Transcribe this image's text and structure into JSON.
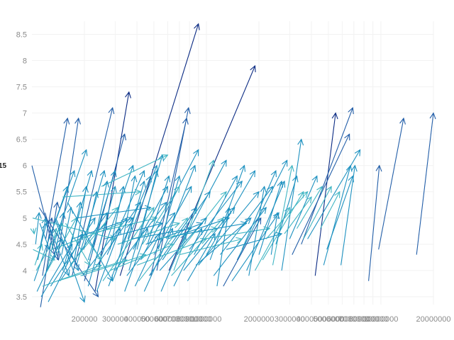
{
  "chart_data": {
    "type": "line",
    "subtype": "arrow-segments",
    "x_scale": "log",
    "x_tick_labels": [
      "200000",
      "300000",
      "400000",
      "500000",
      "600000",
      "700000",
      "800000",
      "900000",
      "1000000",
      "2000000",
      "3000000",
      "4000000",
      "5000000",
      "6000000",
      "7000000",
      "8000000",
      "9000000",
      "10000000",
      "20000000"
    ],
    "x_ticks": [
      200000,
      300000,
      400000,
      500000,
      600000,
      700000,
      800000,
      900000,
      1000000,
      2000000,
      3000000,
      4000000,
      5000000,
      6000000,
      7000000,
      8000000,
      9000000,
      10000000,
      20000000
    ],
    "y_tick_labels": [
      "3.5",
      "4",
      "4.5",
      "5",
      "5.5",
      "6",
      "6.5",
      "7",
      "7.5",
      "8",
      "8.5"
    ],
    "y_ticks": [
      3.5,
      4,
      4.5,
      5,
      5.5,
      6,
      6.5,
      7,
      7.5,
      8,
      8.5
    ],
    "xlim": [
      100000,
      20000000
    ],
    "ylim": [
      3.35,
      8.75
    ],
    "left_edge_label": "15",
    "grid": true,
    "legend": "none",
    "colors": {
      "light": "#41b6c4",
      "mid": "#1d91c0",
      "dark": "#225ea8",
      "darkest": "#0c2c84",
      "grid": "#f2f2f2",
      "tick": "#8a8a8a"
    },
    "segments": [
      {
        "x0": 120000,
        "y0": 4.6,
        "x1": 160000,
        "y1": 6.9,
        "shade": "dark"
      },
      {
        "x0": 140000,
        "y0": 4.2,
        "x1": 185000,
        "y1": 6.9,
        "shade": "dark"
      },
      {
        "x0": 170000,
        "y0": 3.9,
        "x1": 290000,
        "y1": 7.1,
        "shade": "dark"
      },
      {
        "x0": 230000,
        "y0": 3.6,
        "x1": 360000,
        "y1": 7.4,
        "shade": "darkest"
      },
      {
        "x0": 320000,
        "y0": 3.9,
        "x1": 900000,
        "y1": 8.7,
        "shade": "darkest"
      },
      {
        "x0": 610000,
        "y0": 4.0,
        "x1": 1900000,
        "y1": 7.9,
        "shade": "darkest"
      },
      {
        "x0": 200000,
        "y0": 3.8,
        "x1": 340000,
        "y1": 6.6,
        "shade": "dark"
      },
      {
        "x0": 520000,
        "y0": 4.0,
        "x1": 790000,
        "y1": 7.1,
        "shade": "dark"
      },
      {
        "x0": 480000,
        "y0": 3.9,
        "x1": 770000,
        "y1": 6.9,
        "shade": "dark"
      },
      {
        "x0": 130000,
        "y0": 4.4,
        "x1": 205000,
        "y1": 6.3,
        "shade": "mid"
      },
      {
        "x0": 100000,
        "y0": 6.0,
        "x1": 135000,
        "y1": 4.3,
        "shade": "dark"
      },
      {
        "x0": 290000,
        "y0": 3.8,
        "x1": 520000,
        "y1": 6.0,
        "shade": "mid"
      },
      {
        "x0": 360000,
        "y0": 4.0,
        "x1": 560000,
        "y1": 6.2,
        "shade": "mid"
      },
      {
        "x0": 420000,
        "y0": 4.2,
        "x1": 900000,
        "y1": 6.3,
        "shade": "mid"
      },
      {
        "x0": 4200000,
        "y0": 3.9,
        "x1": 5500000,
        "y1": 7.0,
        "shade": "darkest"
      },
      {
        "x0": 3500000,
        "y0": 4.5,
        "x1": 6900000,
        "y1": 7.1,
        "shade": "dark"
      },
      {
        "x0": 3100000,
        "y0": 4.3,
        "x1": 6600000,
        "y1": 6.6,
        "shade": "dark"
      },
      {
        "x0": 3800000,
        "y0": 4.6,
        "x1": 7600000,
        "y1": 6.3,
        "shade": "mid"
      },
      {
        "x0": 4700000,
        "y0": 4.1,
        "x1": 6700000,
        "y1": 6.0,
        "shade": "mid"
      },
      {
        "x0": 5900000,
        "y0": 4.1,
        "x1": 7100000,
        "y1": 6.0,
        "shade": "mid"
      },
      {
        "x0": 8500000,
        "y0": 3.8,
        "x1": 9800000,
        "y1": 6.0,
        "shade": "dark"
      },
      {
        "x0": 9700000,
        "y0": 4.4,
        "x1": 13500000,
        "y1": 6.9,
        "shade": "dark"
      },
      {
        "x0": 16000000,
        "y0": 4.3,
        "x1": 20000000,
        "y1": 7.0,
        "shade": "dark"
      },
      {
        "x0": 2700000,
        "y0": 4.0,
        "x1": 3500000,
        "y1": 6.5,
        "shade": "mid"
      },
      {
        "x0": 1500000,
        "y0": 4.2,
        "x1": 2900000,
        "y1": 6.1,
        "shade": "mid"
      },
      {
        "x0": 1000000,
        "y0": 4.3,
        "x1": 1900000,
        "y1": 5.9,
        "shade": "mid"
      },
      {
        "x0": 650000,
        "y0": 4.0,
        "x1": 1100000,
        "y1": 6.1,
        "shade": "light"
      },
      {
        "x0": 2400000,
        "y0": 4.1,
        "x1": 3100000,
        "y1": 6.0,
        "shade": "light"
      },
      {
        "x0": 4900000,
        "y0": 4.4,
        "x1": 6900000,
        "y1": 5.8,
        "shade": "mid"
      },
      {
        "x0": 102000,
        "y0": 4.8,
        "x1": 103000,
        "y1": 4.7,
        "shade": "light"
      },
      {
        "x0": 105000,
        "y0": 4.5,
        "x1": 110000,
        "y1": 5.1,
        "shade": "mid"
      },
      {
        "x0": 108000,
        "y0": 4.2,
        "x1": 120000,
        "y1": 5.0,
        "shade": "mid"
      },
      {
        "x0": 115000,
        "y0": 3.9,
        "x1": 130000,
        "y1": 5.0,
        "shade": "dark"
      },
      {
        "x0": 112000,
        "y0": 3.3,
        "x1": 140000,
        "y1": 5.3,
        "shade": "dark"
      },
      {
        "x0": 103000,
        "y0": 3.8,
        "x1": 160000,
        "y1": 5.6,
        "shade": "mid"
      },
      {
        "x0": 125000,
        "y0": 4.6,
        "x1": 175000,
        "y1": 5.9,
        "shade": "mid"
      },
      {
        "x0": 150000,
        "y0": 4.0,
        "x1": 220000,
        "y1": 5.9,
        "shade": "mid"
      },
      {
        "x0": 180000,
        "y0": 4.1,
        "x1": 260000,
        "y1": 5.9,
        "shade": "mid"
      },
      {
        "x0": 210000,
        "y0": 4.2,
        "x1": 300000,
        "y1": 5.9,
        "shade": "mid"
      },
      {
        "x0": 240000,
        "y0": 4.1,
        "x1": 380000,
        "y1": 6.0,
        "shade": "mid"
      },
      {
        "x0": 270000,
        "y0": 4.3,
        "x1": 440000,
        "y1": 5.9,
        "shade": "mid"
      },
      {
        "x0": 330000,
        "y0": 4.5,
        "x1": 480000,
        "y1": 5.8,
        "shade": "mid"
      },
      {
        "x0": 380000,
        "y0": 4.4,
        "x1": 600000,
        "y1": 5.6,
        "shade": "mid"
      },
      {
        "x0": 430000,
        "y0": 4.5,
        "x1": 700000,
        "y1": 5.6,
        "shade": "light"
      },
      {
        "x0": 500000,
        "y0": 4.3,
        "x1": 820000,
        "y1": 5.6,
        "shade": "mid"
      },
      {
        "x0": 560000,
        "y0": 4.2,
        "x1": 1050000,
        "y1": 5.5,
        "shade": "mid"
      },
      {
        "x0": 680000,
        "y0": 4.3,
        "x1": 1300000,
        "y1": 5.5,
        "shade": "light"
      },
      {
        "x0": 800000,
        "y0": 4.4,
        "x1": 1600000,
        "y1": 5.7,
        "shade": "mid"
      },
      {
        "x0": 900000,
        "y0": 4.1,
        "x1": 2000000,
        "y1": 5.5,
        "shade": "mid"
      },
      {
        "x0": 1200000,
        "y0": 4.3,
        "x1": 2400000,
        "y1": 5.6,
        "shade": "mid"
      },
      {
        "x0": 1700000,
        "y0": 4.0,
        "x1": 2800000,
        "y1": 5.7,
        "shade": "mid"
      },
      {
        "x0": 2100000,
        "y0": 4.2,
        "x1": 3600000,
        "y1": 5.5,
        "shade": "light"
      },
      {
        "x0": 3000000,
        "y0": 4.6,
        "x1": 4300000,
        "y1": 5.8,
        "shade": "mid"
      },
      {
        "x0": 3600000,
        "y0": 4.6,
        "x1": 5200000,
        "y1": 5.6,
        "shade": "light"
      },
      {
        "x0": 4500000,
        "y0": 4.8,
        "x1": 5800000,
        "y1": 5.5,
        "shade": "light"
      },
      {
        "x0": 106000,
        "y0": 4.0,
        "x1": 150000,
        "y1": 4.9,
        "shade": "light"
      },
      {
        "x0": 118000,
        "y0": 3.9,
        "x1": 180000,
        "y1": 5.0,
        "shade": "light"
      },
      {
        "x0": 128000,
        "y0": 3.7,
        "x1": 230000,
        "y1": 5.0,
        "shade": "mid"
      },
      {
        "x0": 145000,
        "y0": 3.8,
        "x1": 270000,
        "y1": 5.1,
        "shade": "mid"
      },
      {
        "x0": 165000,
        "y0": 4.1,
        "x1": 310000,
        "y1": 5.2,
        "shade": "light"
      },
      {
        "x0": 195000,
        "y0": 3.9,
        "x1": 350000,
        "y1": 5.0,
        "shade": "mid"
      },
      {
        "x0": 225000,
        "y0": 4.0,
        "x1": 420000,
        "y1": 5.3,
        "shade": "mid"
      },
      {
        "x0": 255000,
        "y0": 3.8,
        "x1": 500000,
        "y1": 5.2,
        "shade": "light"
      },
      {
        "x0": 300000,
        "y0": 4.0,
        "x1": 590000,
        "y1": 5.3,
        "shade": "mid"
      },
      {
        "x0": 350000,
        "y0": 3.9,
        "x1": 660000,
        "y1": 5.1,
        "shade": "mid"
      },
      {
        "x0": 410000,
        "y0": 3.8,
        "x1": 780000,
        "y1": 5.0,
        "shade": "light"
      },
      {
        "x0": 470000,
        "y0": 3.9,
        "x1": 880000,
        "y1": 5.2,
        "shade": "mid"
      },
      {
        "x0": 540000,
        "y0": 4.0,
        "x1": 1000000,
        "y1": 5.0,
        "shade": "mid"
      },
      {
        "x0": 630000,
        "y0": 3.9,
        "x1": 1250000,
        "y1": 5.0,
        "shade": "light"
      },
      {
        "x0": 740000,
        "y0": 4.0,
        "x1": 1450000,
        "y1": 5.2,
        "shade": "mid"
      },
      {
        "x0": 870000,
        "y0": 4.1,
        "x1": 1800000,
        "y1": 5.0,
        "shade": "mid"
      },
      {
        "x0": 1100000,
        "y0": 3.9,
        "x1": 2200000,
        "y1": 5.2,
        "shade": "mid"
      },
      {
        "x0": 1400000,
        "y0": 3.8,
        "x1": 2600000,
        "y1": 5.1,
        "shade": "mid"
      },
      {
        "x0": 1900000,
        "y0": 4.0,
        "x1": 3000000,
        "y1": 5.2,
        "shade": "light"
      },
      {
        "x0": 101000,
        "y0": 5.0,
        "x1": 300000,
        "y1": 4.6,
        "shade": "light"
      },
      {
        "x0": 110000,
        "y0": 5.2,
        "x1": 240000,
        "y1": 3.5,
        "shade": "dark"
      },
      {
        "x0": 135000,
        "y0": 5.0,
        "x1": 200000,
        "y1": 3.4,
        "shade": "mid"
      },
      {
        "x0": 160000,
        "y0": 5.3,
        "x1": 290000,
        "y1": 3.8,
        "shade": "mid"
      },
      {
        "x0": 115000,
        "y0": 3.7,
        "x1": 250000,
        "y1": 4.1,
        "shade": "light"
      },
      {
        "x0": 140000,
        "y0": 3.8,
        "x1": 350000,
        "y1": 4.2,
        "shade": "light"
      },
      {
        "x0": 190000,
        "y0": 3.9,
        "x1": 450000,
        "y1": 4.3,
        "shade": "light"
      },
      {
        "x0": 280000,
        "y0": 4.0,
        "x1": 650000,
        "y1": 4.5,
        "shade": "light"
      },
      {
        "x0": 400000,
        "y0": 4.1,
        "x1": 1000000,
        "y1": 4.6,
        "shade": "light"
      },
      {
        "x0": 700000,
        "y0": 4.3,
        "x1": 1600000,
        "y1": 4.6,
        "shade": "light"
      },
      {
        "x0": 150000,
        "y0": 5.4,
        "x1": 420000,
        "y1": 5.5,
        "shade": "light"
      },
      {
        "x0": 250000,
        "y0": 5.6,
        "x1": 600000,
        "y1": 6.2,
        "shade": "light"
      },
      {
        "x0": 180000,
        "y0": 5.0,
        "x1": 480000,
        "y1": 5.2,
        "shade": "mid"
      },
      {
        "x0": 130000,
        "y0": 4.4,
        "x1": 330000,
        "y1": 4.9,
        "shade": "light"
      },
      {
        "x0": 170000,
        "y0": 4.6,
        "x1": 380000,
        "y1": 5.0,
        "shade": "mid"
      },
      {
        "x0": 215000,
        "y0": 4.7,
        "x1": 520000,
        "y1": 5.0,
        "shade": "light"
      },
      {
        "x0": 260000,
        "y0": 4.6,
        "x1": 560000,
        "y1": 4.9,
        "shade": "mid"
      },
      {
        "x0": 310000,
        "y0": 4.5,
        "x1": 700000,
        "y1": 4.9,
        "shade": "light"
      },
      {
        "x0": 370000,
        "y0": 4.6,
        "x1": 820000,
        "y1": 4.8,
        "shade": "mid"
      },
      {
        "x0": 450000,
        "y0": 4.5,
        "x1": 950000,
        "y1": 4.9,
        "shade": "mid"
      },
      {
        "x0": 520000,
        "y0": 4.6,
        "x1": 1150000,
        "y1": 4.8,
        "shade": "light"
      },
      {
        "x0": 600000,
        "y0": 4.6,
        "x1": 1350000,
        "y1": 5.0,
        "shade": "mid"
      },
      {
        "x0": 760000,
        "y0": 4.7,
        "x1": 1700000,
        "y1": 4.9,
        "shade": "mid"
      },
      {
        "x0": 960000,
        "y0": 4.6,
        "x1": 2300000,
        "y1": 4.8,
        "shade": "light"
      },
      {
        "x0": 1300000,
        "y0": 4.4,
        "x1": 2700000,
        "y1": 4.7,
        "shade": "mid"
      },
      {
        "x0": 104000,
        "y0": 4.1,
        "x1": 114000,
        "y1": 4.5,
        "shade": "light"
      },
      {
        "x0": 109000,
        "y0": 4.3,
        "x1": 121000,
        "y1": 4.9,
        "shade": "mid"
      },
      {
        "x0": 122000,
        "y0": 4.0,
        "x1": 138000,
        "y1": 4.8,
        "shade": "light"
      },
      {
        "x0": 133000,
        "y0": 4.2,
        "x1": 152000,
        "y1": 5.1,
        "shade": "mid"
      },
      {
        "x0": 148000,
        "y0": 4.3,
        "x1": 168000,
        "y1": 5.2,
        "shade": "mid"
      },
      {
        "x0": 158000,
        "y0": 4.1,
        "x1": 190000,
        "y1": 5.3,
        "shade": "mid"
      },
      {
        "x0": 175000,
        "y0": 4.2,
        "x1": 205000,
        "y1": 5.6,
        "shade": "mid"
      },
      {
        "x0": 198000,
        "y0": 4.4,
        "x1": 235000,
        "y1": 5.5,
        "shade": "mid"
      },
      {
        "x0": 220000,
        "y0": 4.3,
        "x1": 270000,
        "y1": 5.7,
        "shade": "mid"
      },
      {
        "x0": 245000,
        "y0": 4.5,
        "x1": 300000,
        "y1": 5.6,
        "shade": "mid"
      },
      {
        "x0": 280000,
        "y0": 4.4,
        "x1": 335000,
        "y1": 5.6,
        "shade": "mid"
      },
      {
        "x0": 320000,
        "y0": 4.3,
        "x1": 390000,
        "y1": 5.8,
        "shade": "mid"
      },
      {
        "x0": 355000,
        "y0": 4.6,
        "x1": 440000,
        "y1": 5.7,
        "shade": "mid"
      },
      {
        "x0": 400000,
        "y0": 4.4,
        "x1": 520000,
        "y1": 5.9,
        "shade": "mid"
      },
      {
        "x0": 460000,
        "y0": 4.5,
        "x1": 610000,
        "y1": 5.8,
        "shade": "mid"
      },
      {
        "x0": 530000,
        "y0": 4.4,
        "x1": 700000,
        "y1": 5.8,
        "shade": "mid"
      },
      {
        "x0": 590000,
        "y0": 4.6,
        "x1": 860000,
        "y1": 6.0,
        "shade": "mid"
      },
      {
        "x0": 720000,
        "y0": 4.5,
        "x1": 1300000,
        "y1": 6.1,
        "shade": "mid"
      },
      {
        "x0": 850000,
        "y0": 4.3,
        "x1": 1500000,
        "y1": 5.8,
        "shade": "mid"
      },
      {
        "x0": 1050000,
        "y0": 4.2,
        "x1": 1650000,
        "y1": 6.0,
        "shade": "mid"
      },
      {
        "x0": 1600000,
        "y0": 4.4,
        "x1": 2500000,
        "y1": 5.9,
        "shade": "mid"
      },
      {
        "x0": 2000000,
        "y0": 4.3,
        "x1": 2700000,
        "y1": 5.7,
        "shade": "mid"
      },
      {
        "x0": 2500000,
        "y0": 4.5,
        "x1": 3300000,
        "y1": 5.8,
        "shade": "mid"
      },
      {
        "x0": 2200000,
        "y0": 4.6,
        "x1": 3800000,
        "y1": 5.5,
        "shade": "light"
      },
      {
        "x0": 2800000,
        "y0": 4.7,
        "x1": 4000000,
        "y1": 5.4,
        "shade": "light"
      },
      {
        "x0": 3300000,
        "y0": 4.8,
        "x1": 4600000,
        "y1": 5.6,
        "shade": "light"
      },
      {
        "x0": 1150000,
        "y0": 3.7,
        "x1": 1350000,
        "y1": 5.2,
        "shade": "mid"
      },
      {
        "x0": 1250000,
        "y0": 3.7,
        "x1": 2050000,
        "y1": 5.0,
        "shade": "dark"
      },
      {
        "x0": 1750000,
        "y0": 3.9,
        "x1": 2150000,
        "y1": 5.6,
        "shade": "mid"
      },
      {
        "x0": 2350000,
        "y0": 4.3,
        "x1": 2550000,
        "y1": 5.1,
        "shade": "mid"
      },
      {
        "x0": 111000,
        "y0": 4.9,
        "x1": 126000,
        "y1": 4.4,
        "shade": "mid"
      },
      {
        "x0": 119000,
        "y0": 5.1,
        "x1": 142000,
        "y1": 4.2,
        "shade": "dark"
      },
      {
        "x0": 127000,
        "y0": 4.8,
        "x1": 163000,
        "y1": 3.9,
        "shade": "mid"
      },
      {
        "x0": 137000,
        "y0": 5.0,
        "x1": 185000,
        "y1": 4.0,
        "shade": "mid"
      },
      {
        "x0": 156000,
        "y0": 4.9,
        "x1": 215000,
        "y1": 4.1,
        "shade": "light"
      },
      {
        "x0": 186000,
        "y0": 4.8,
        "x1": 250000,
        "y1": 4.2,
        "shade": "light"
      },
      {
        "x0": 101500,
        "y0": 4.4,
        "x1": 135000,
        "y1": 4.2,
        "shade": "light"
      },
      {
        "x0": 107000,
        "y0": 3.6,
        "x1": 148000,
        "y1": 4.6,
        "shade": "mid"
      },
      {
        "x0": 113000,
        "y0": 3.5,
        "x1": 170000,
        "y1": 4.5,
        "shade": "mid"
      },
      {
        "x0": 124000,
        "y0": 3.4,
        "x1": 195000,
        "y1": 4.7,
        "shade": "mid"
      },
      {
        "x0": 210000,
        "y0": 3.7,
        "x1": 265000,
        "y1": 4.9,
        "shade": "mid"
      },
      {
        "x0": 235000,
        "y0": 3.6,
        "x1": 320000,
        "y1": 4.8,
        "shade": "mid"
      },
      {
        "x0": 275000,
        "y0": 3.7,
        "x1": 370000,
        "y1": 4.9,
        "shade": "mid"
      },
      {
        "x0": 340000,
        "y0": 3.6,
        "x1": 460000,
        "y1": 4.8,
        "shade": "mid"
      },
      {
        "x0": 390000,
        "y0": 3.7,
        "x1": 540000,
        "y1": 4.7,
        "shade": "mid"
      },
      {
        "x0": 440000,
        "y0": 3.6,
        "x1": 640000,
        "y1": 4.8,
        "shade": "mid"
      },
      {
        "x0": 550000,
        "y0": 3.6,
        "x1": 760000,
        "y1": 4.7,
        "shade": "mid"
      },
      {
        "x0": 650000,
        "y0": 3.7,
        "x1": 940000,
        "y1": 4.8,
        "shade": "mid"
      },
      {
        "x0": 780000,
        "y0": 3.8,
        "x1": 1120000,
        "y1": 4.7,
        "shade": "mid"
      }
    ]
  }
}
